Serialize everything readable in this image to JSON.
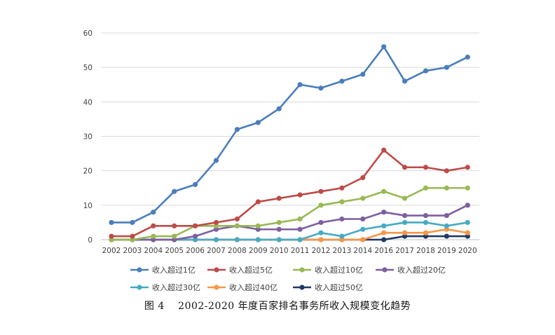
{
  "caption": "图 4　 2002-2020 年度百家排名事务所收入规模变化趋势",
  "chart_data": {
    "type": "line",
    "x": [
      "2002",
      "2003",
      "2004",
      "2005",
      "2006",
      "2007",
      "2008",
      "2009",
      "2010",
      "2011",
      "2012",
      "2013",
      "2014",
      "2016",
      "2017",
      "2018",
      "2019",
      "2020"
    ],
    "ylim": [
      0,
      60
    ],
    "yticks": [
      0,
      10,
      20,
      30,
      40,
      50,
      60
    ],
    "grid": true,
    "legend_position": "bottom",
    "series": [
      {
        "name": "收入超过1亿",
        "color": "#4a7ebb",
        "values": [
          5,
          5,
          8,
          14,
          16,
          23,
          32,
          34,
          38,
          45,
          44,
          46,
          48,
          56,
          46,
          49,
          50,
          53
        ]
      },
      {
        "name": "收入超过5亿",
        "color": "#be4b48",
        "values": [
          1,
          1,
          4,
          4,
          4,
          5,
          6,
          11,
          12,
          13,
          14,
          15,
          18,
          26,
          21,
          21,
          20,
          21
        ]
      },
      {
        "name": "收入超过10亿",
        "color": "#98b954",
        "values": [
          0,
          0,
          1,
          1,
          4,
          4,
          4,
          4,
          5,
          6,
          10,
          11,
          12,
          14,
          12,
          15,
          15,
          15
        ]
      },
      {
        "name": "收入超过20亿",
        "color": "#7d5fa0",
        "values": [
          0,
          0,
          0,
          0,
          1,
          3,
          4,
          3,
          3,
          3,
          5,
          6,
          6,
          8,
          7,
          7,
          7,
          10
        ]
      },
      {
        "name": "收入超过30亿",
        "color": "#46aac5",
        "values": [
          0,
          0,
          0,
          0,
          0,
          0,
          0,
          0,
          0,
          0,
          2,
          1,
          3,
          4,
          5,
          5,
          4,
          5
        ]
      },
      {
        "name": "收入超过40亿",
        "color": "#f79646",
        "values": [
          0,
          0,
          0,
          0,
          0,
          0,
          0,
          0,
          0,
          0,
          0,
          0,
          0,
          2,
          2,
          2,
          3,
          2
        ]
      },
      {
        "name": "收入超过50亿",
        "color": "#1f3864",
        "values": [
          0,
          0,
          0,
          0,
          0,
          0,
          0,
          0,
          0,
          0,
          0,
          0,
          0,
          0,
          1,
          1,
          1,
          1
        ]
      }
    ]
  }
}
